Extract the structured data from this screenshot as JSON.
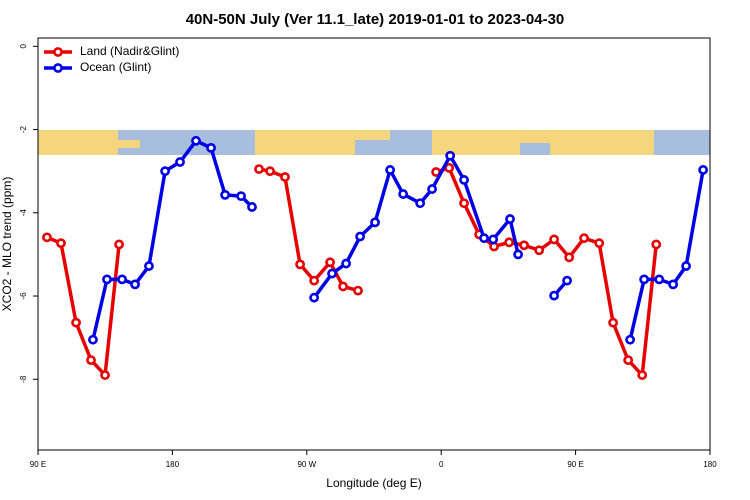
{
  "chart_data": {
    "type": "line",
    "title": "40N-50N July (Ver 11.1_late)   2019-01-01 to 2023-04-30",
    "x_label": "Longitude (deg E)",
    "y_label": "XCO2 - MLO trend (ppm)",
    "xlim": [
      90,
      540
    ],
    "ylim": [
      -9.7,
      0.2
    ],
    "xticks": [
      {
        "value": 90,
        "label": "90 E"
      },
      180,
      {
        "value": 270,
        "label": "90 W"
      },
      {
        "value": 360,
        "label": "0"
      },
      {
        "value": 450,
        "label": "90 E"
      },
      {
        "value": 540,
        "label": "180"
      }
    ],
    "yticks": [
      0,
      -2,
      -4,
      -6,
      -8
    ],
    "legend": "top-left",
    "series": [
      {
        "name": "Land (Nadir&Glint)",
        "color": "#e60000",
        "x": [
          96,
          105.4,
          115.5,
          125.5,
          134.9,
          144.3,
          null,
          238,
          245.4,
          255.4,
          265.5,
          274.9,
          285.6,
          294.3,
          304.3,
          null,
          356.6,
          365.3,
          375.3,
          385.4,
          395.4,
          405.5,
          415.5,
          425.6,
          435.6,
          445.7,
          455.7,
          465.8,
          475.1,
          485.2,
          494.6,
          504
        ],
        "values": [
          -4.59,
          -4.73,
          -6.64,
          -7.54,
          -7.9,
          -4.76,
          null,
          -2.95,
          -3.0,
          -3.14,
          -5.24,
          -5.63,
          -5.19,
          -5.77,
          -5.87,
          null,
          -3.02,
          -2.92,
          -3.77,
          -4.52,
          -4.81,
          -4.71,
          -4.78,
          -4.9,
          -4.64,
          -5.07,
          -4.61,
          -4.73,
          -6.64,
          -7.54,
          -7.9,
          -4.76
        ]
      },
      {
        "name": "Ocean (Glint)",
        "color": "#0000e6",
        "x": [
          126.8,
          136.2,
          146.3,
          155,
          164.3,
          175.1,
          185.1,
          195.8,
          205.9,
          215.3,
          226,
          233.3,
          null,
          274.9,
          286.9,
          296.3,
          305.7,
          315.7,
          325.8,
          334.5,
          345.9,
          353.9,
          366,
          375.3,
          388.7,
          394.8,
          406.1,
          411.5,
          null,
          435.6,
          444.3,
          null,
          486.5,
          495.9,
          506,
          515.3,
          524,
          535.4
        ],
        "values": [
          -7.05,
          -5.6,
          -5.6,
          -5.72,
          -5.28,
          -3.0,
          -2.78,
          -2.27,
          -2.44,
          -3.57,
          -3.6,
          -3.86,
          null,
          -6.04,
          -5.46,
          -5.22,
          -4.57,
          -4.23,
          -2.97,
          -3.55,
          -3.77,
          -3.43,
          -2.63,
          -3.21,
          -4.61,
          -4.64,
          -4.15,
          -5.0,
          null,
          -5.99,
          -5.63,
          null,
          -7.05,
          -5.6,
          -5.6,
          -5.72,
          -5.28,
          -2.97
        ]
      }
    ]
  }
}
